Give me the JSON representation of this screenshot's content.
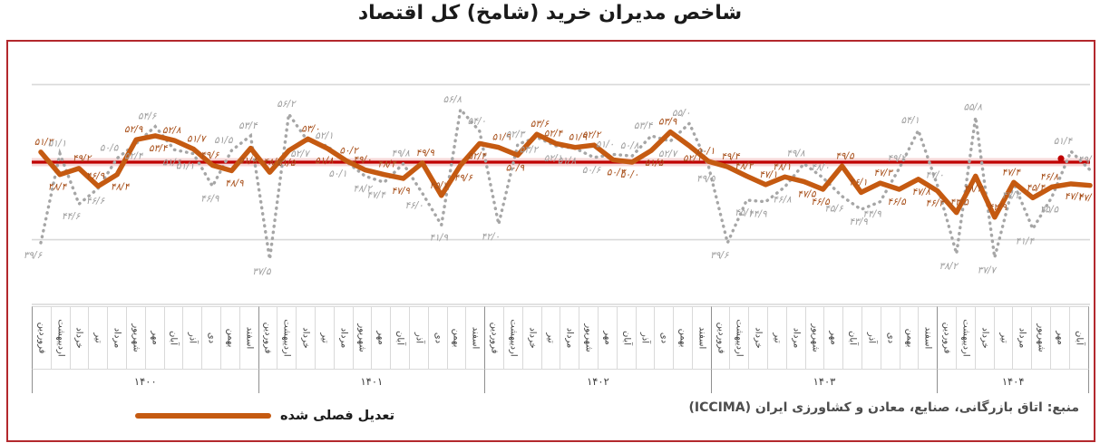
{
  "title": "شاخص مدیران خرید (شامخ) کل اقتصاد",
  "legend": {
    "seasonal_label": "تعدیل فصلی شده"
  },
  "source": "منبع: اتاق بازرگانی، صنایع، معادن و کشاورزی ایران (ICCIMA)",
  "colors": {
    "adjusted_line": "#c55a11",
    "raw_dotted": "#a6a6a6",
    "reference_red": "#c00000",
    "reference_halo": "#f2b8b8",
    "frame_border": "#b3282d",
    "grid": "#d9d9d9",
    "raw_label": "#9f9f9f",
    "adjusted_label": "#a8511c"
  },
  "chart_data": {
    "type": "line",
    "title": "شاخص مدیران خرید (شامخ) کل اقتصاد",
    "reference_line": 50,
    "gridlines": [
      40,
      60
    ],
    "ylim": [
      32,
      62
    ],
    "legend_position": "bottom-left",
    "years": [
      {
        "label": "۱۴۰۰",
        "months": [
          "فروردین",
          "اردیبهشت",
          "خرداد",
          "تیر",
          "مرداد",
          "شهریور",
          "مهر",
          "آبان",
          "آذر",
          "دی",
          "بهمن",
          "اسفند"
        ]
      },
      {
        "label": "۱۴۰۱",
        "months": [
          "فروردین",
          "اردیبهشت",
          "خرداد",
          "تیر",
          "مرداد",
          "شهریور",
          "مهر",
          "آبان",
          "آذر",
          "دی",
          "بهمن",
          "اسفند"
        ]
      },
      {
        "label": "۱۴۰۲",
        "months": [
          "فروردین",
          "اردیبهشت",
          "خرداد",
          "تیر",
          "مرداد",
          "شهریور",
          "مهر",
          "آبان",
          "آذر",
          "دی",
          "بهمن",
          "اسفند"
        ]
      },
      {
        "label": "۱۴۰۳",
        "months": [
          "فروردین",
          "اردیبهشت",
          "خرداد",
          "تیر",
          "مرداد",
          "شهریور",
          "مهر",
          "آبان",
          "آذر",
          "دی",
          "بهمن",
          "اسفند"
        ]
      },
      {
        "label": "۱۴۰۴",
        "months": [
          "فروردین",
          "اردیبهشت",
          "خرداد",
          "تیر",
          "مرداد",
          "شهریور",
          "مهر",
          "آبان"
        ]
      }
    ],
    "series": [
      {
        "id": "raw",
        "style": "dotted",
        "values": [
          39.6,
          51.1,
          44.6,
          46.6,
          50.5,
          52.4,
          54.6,
          51.6,
          51.1,
          46.9,
          51.5,
          53.4,
          37.5,
          56.2,
          52.7,
          52.1,
          50.1,
          48.2,
          47.4,
          49.8,
          46.0,
          41.9,
          56.8,
          54.0,
          42.0,
          52.3,
          53.2,
          52.1,
          51.8,
          50.6,
          51.0,
          50.8,
          53.4,
          52.7,
          55.0,
          49.5,
          39.6,
          45.1,
          44.9,
          46.8,
          49.8,
          48.0,
          45.6,
          43.9,
          44.9,
          49.2,
          54.1,
          47.0,
          38.2,
          55.8,
          37.7,
          47.3,
          41.4,
          45.5,
          51.4,
          49.0
        ]
      },
      {
        "id": "seasonally-adjusted",
        "style": "solid",
        "legend_label": "تعدیل فصلی شده",
        "values": [
          51.3,
          48.4,
          49.2,
          46.9,
          48.4,
          52.9,
          53.4,
          52.8,
          51.7,
          49.6,
          48.9,
          51.8,
          48.7,
          51.5,
          53.0,
          51.8,
          50.2,
          49.0,
          48.4,
          47.9,
          49.9,
          45.7,
          49.6,
          52.4,
          51.9,
          50.9,
          53.6,
          52.4,
          51.9,
          52.2,
          50.3,
          50.0,
          51.5,
          53.9,
          52.1,
          50.1,
          49.4,
          48.2,
          47.1,
          48.1,
          47.5,
          46.5,
          49.5,
          46.1,
          47.3,
          46.5,
          47.8,
          46.3,
          43.5,
          48.2,
          42.9,
          47.4,
          45.4,
          46.8,
          47.2,
          47.0
        ]
      }
    ],
    "number_format": "persian-digits-slash-decimal"
  }
}
